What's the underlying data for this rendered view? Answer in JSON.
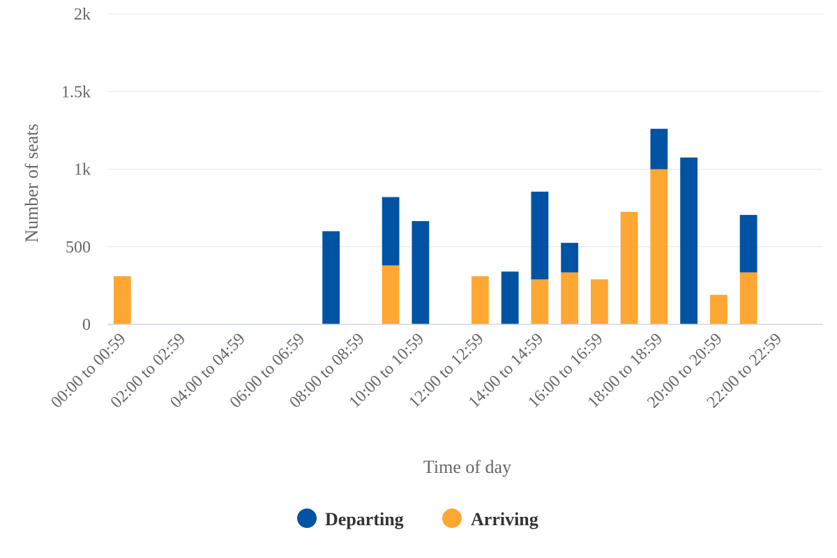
{
  "chart_data": {
    "type": "bar",
    "stacked": true,
    "title": "",
    "xlabel": "Time of day",
    "ylabel": "Number of seats",
    "ylim": [
      0,
      2000
    ],
    "y_ticks": [
      {
        "value": 0,
        "label": "0"
      },
      {
        "value": 500,
        "label": "500"
      },
      {
        "value": 1000,
        "label": "1k"
      },
      {
        "value": 1500,
        "label": "1.5k"
      },
      {
        "value": 2000,
        "label": "2k"
      }
    ],
    "grid": true,
    "legend_position": "bottom-center",
    "categories": [
      "00:00 to 00:59",
      "01:00 to 01:59",
      "02:00 to 02:59",
      "03:00 to 03:59",
      "04:00 to 04:59",
      "05:00 to 05:59",
      "06:00 to 06:59",
      "07:00 to 07:59",
      "08:00 to 08:59",
      "09:00 to 09:59",
      "10:00 to 10:59",
      "11:00 to 11:59",
      "12:00 to 12:59",
      "13:00 to 13:59",
      "14:00 to 14:59",
      "15:00 to 15:59",
      "16:00 to 16:59",
      "17:00 to 17:59",
      "18:00 to 18:59",
      "19:00 to 19:59",
      "20:00 to 20:59",
      "21:00 to 21:59",
      "22:00 to 22:59",
      "23:00 to 23:59"
    ],
    "x_tick_labels_shown": [
      "00:00 to 00:59",
      "02:00 to 02:59",
      "04:00 to 04:59",
      "06:00 to 06:59",
      "08:00 to 08:59",
      "10:00 to 10:59",
      "12:00 to 12:59",
      "14:00 to 14:59",
      "16:00 to 16:59",
      "18:00 to 18:59",
      "20:00 to 20:59",
      "22:00 to 22:59"
    ],
    "series": [
      {
        "name": "Departing",
        "color": "#0052a3",
        "values": [
          0,
          0,
          0,
          0,
          0,
          0,
          0,
          600,
          0,
          440,
          665,
          0,
          0,
          340,
          565,
          190,
          0,
          0,
          260,
          1075,
          0,
          370,
          0,
          0
        ]
      },
      {
        "name": "Arriving",
        "color": "#ffa733",
        "values": [
          310,
          0,
          0,
          0,
          0,
          0,
          0,
          0,
          0,
          380,
          0,
          0,
          310,
          0,
          290,
          335,
          290,
          725,
          1000,
          0,
          190,
          335,
          0,
          0
        ]
      }
    ]
  }
}
